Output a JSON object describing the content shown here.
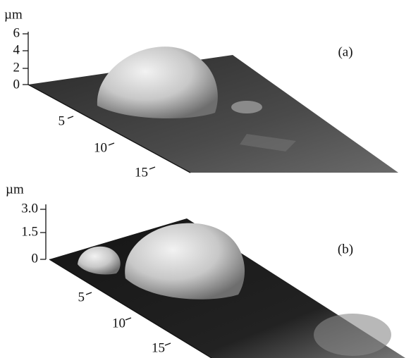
{
  "panels": [
    {
      "label": "(a)",
      "unit": "µm",
      "z_ticks": [
        "6",
        "4",
        "2",
        "0"
      ],
      "plane_ticks": [
        "5",
        "10",
        "15"
      ]
    },
    {
      "label": "(b)",
      "unit": "µm",
      "z_ticks": [
        "3.0",
        "1.5",
        "0"
      ],
      "plane_ticks": [
        "5",
        "10",
        "15"
      ]
    }
  ]
}
